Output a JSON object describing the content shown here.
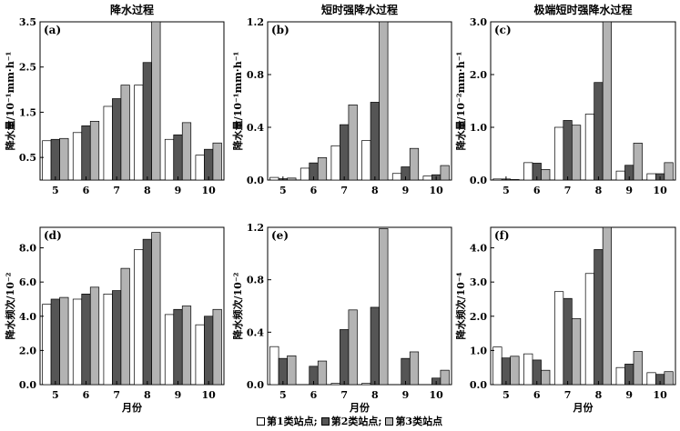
{
  "chart_data": [
    {
      "type": "bar",
      "panel_label": "(a)",
      "title": "降水过程",
      "ylabel": "降水量/10⁻¹mm·h⁻¹",
      "xlabel": "",
      "categories": [
        "5",
        "6",
        "7",
        "8",
        "9",
        "10"
      ],
      "ylim": [
        0,
        3.5
      ],
      "yticks": [
        "0.5",
        "1.5",
        "2.5",
        "3.5"
      ],
      "ytick_values": [
        0.5,
        1.5,
        2.5,
        3.5
      ],
      "series": [
        {
          "values": [
            0.87,
            1.05,
            1.63,
            2.1,
            0.9,
            0.55
          ]
        },
        {
          "values": [
            0.9,
            1.2,
            1.8,
            2.6,
            1.0,
            0.68
          ]
        },
        {
          "values": [
            0.92,
            1.3,
            2.1,
            3.5,
            1.27,
            0.82
          ]
        }
      ]
    },
    {
      "type": "bar",
      "panel_label": "(b)",
      "title": "短时强降水过程",
      "ylabel": "降水量/10⁻¹mm·h⁻¹",
      "xlabel": "",
      "categories": [
        "5",
        "6",
        "7",
        "8",
        "9",
        "10"
      ],
      "ylim": [
        0,
        1.2
      ],
      "yticks": [
        "0.0",
        "0.4",
        "0.8",
        "1.2"
      ],
      "ytick_values": [
        0,
        0.4,
        0.8,
        1.2
      ],
      "series": [
        {
          "values": [
            0.02,
            0.09,
            0.26,
            0.3,
            0.05,
            0.03
          ]
        },
        {
          "values": [
            0.01,
            0.13,
            0.42,
            0.59,
            0.1,
            0.04
          ]
        },
        {
          "values": [
            0.015,
            0.17,
            0.57,
            1.2,
            0.24,
            0.11
          ]
        }
      ]
    },
    {
      "type": "bar",
      "panel_label": "(c)",
      "title": "极端短时强降水过程",
      "ylabel": "降水量/10⁻²mm·h⁻¹",
      "xlabel": "",
      "categories": [
        "5",
        "6",
        "7",
        "8",
        "9",
        "10"
      ],
      "ylim": [
        0,
        3.0
      ],
      "yticks": [
        "0.0",
        "1.0",
        "2.0",
        "3.0"
      ],
      "ytick_values": [
        0,
        1.0,
        2.0,
        3.0
      ],
      "series": [
        {
          "values": [
            0.02,
            0.33,
            1.0,
            1.25,
            0.17,
            0.12
          ]
        },
        {
          "values": [
            0.02,
            0.32,
            1.13,
            1.85,
            0.28,
            0.12
          ]
        },
        {
          "values": [
            0.01,
            0.2,
            1.04,
            3.0,
            0.7,
            0.33
          ]
        }
      ]
    },
    {
      "type": "bar",
      "panel_label": "(d)",
      "title": "",
      "ylabel": "降水频次/10⁻²",
      "xlabel": "月份",
      "categories": [
        "5",
        "6",
        "7",
        "8",
        "9",
        "10"
      ],
      "ylim": [
        0,
        9.2
      ],
      "yticks": [
        "0.0",
        "2.0",
        "4.0",
        "6.0",
        "8.0"
      ],
      "ytick_values": [
        0,
        2.0,
        4.0,
        6.0,
        8.0
      ],
      "series": [
        {
          "values": [
            4.7,
            5.0,
            5.3,
            7.9,
            4.1,
            3.5
          ]
        },
        {
          "values": [
            5.0,
            5.3,
            5.5,
            8.5,
            4.4,
            4.0
          ]
        },
        {
          "values": [
            5.1,
            5.7,
            6.8,
            8.9,
            4.6,
            4.4
          ]
        }
      ]
    },
    {
      "type": "bar",
      "panel_label": "(e)",
      "title": "",
      "ylabel": "降水频次/10⁻²",
      "xlabel": "月份",
      "categories": [
        "5",
        "6",
        "7",
        "8",
        "9",
        "10"
      ],
      "ylim": [
        0,
        1.2
      ],
      "yticks": [
        "0.0",
        "0.4",
        "0.8",
        "1.2"
      ],
      "ytick_values": [
        0,
        0.4,
        0.8,
        1.2
      ],
      "series": [
        {
          "values": [
            0.29,
            0.0,
            0.01,
            0.01,
            0.0,
            0.0
          ]
        },
        {
          "values": [
            0.2,
            0.14,
            0.42,
            0.59,
            0.2,
            0.05
          ]
        },
        {
          "values": [
            0.22,
            0.18,
            0.57,
            1.19,
            0.25,
            0.11
          ]
        }
      ]
    },
    {
      "type": "bar",
      "panel_label": "(f)",
      "title": "",
      "ylabel": "降水频次/10⁻⁴",
      "xlabel": "月份",
      "categories": [
        "5",
        "6",
        "7",
        "8",
        "9",
        "10"
      ],
      "ylim": [
        0,
        4.6
      ],
      "yticks": [
        "0.0",
        "1.0",
        "2.0",
        "3.0",
        "4.0"
      ],
      "ytick_values": [
        0,
        1.0,
        2.0,
        3.0,
        4.0
      ],
      "series": [
        {
          "values": [
            1.1,
            0.9,
            2.72,
            3.25,
            0.5,
            0.35
          ]
        },
        {
          "values": [
            0.78,
            0.72,
            2.52,
            3.95,
            0.6,
            0.3
          ]
        },
        {
          "values": [
            0.83,
            0.42,
            1.93,
            4.6,
            0.97,
            0.38
          ]
        }
      ]
    }
  ],
  "legend": {
    "items": [
      {
        "label": "第1类站点;",
        "color": "#ffffff"
      },
      {
        "label": "第2类站点;",
        "color": "#555555"
      },
      {
        "label": "第3类站点",
        "color": "#b3b3b3"
      }
    ]
  },
  "series_colors": [
    "#ffffff",
    "#555555",
    "#b3b3b3"
  ]
}
